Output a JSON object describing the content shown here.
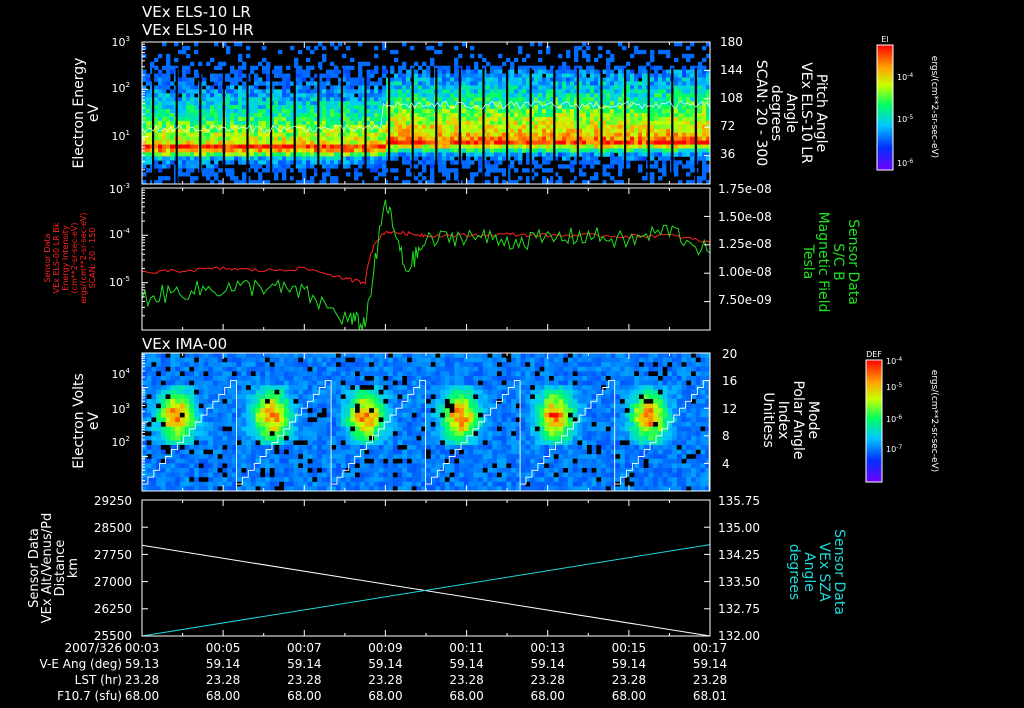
{
  "panel1": {
    "titles": [
      "VEx ELS-10 LR",
      "VEx ELS-10 HR"
    ],
    "ylabel_left": [
      "Electron Energy",
      "eV"
    ],
    "yticks_left": [
      "10",
      "10",
      "10"
    ],
    "yticks_left_exp": [
      "3",
      "2",
      "1"
    ],
    "ylabel_right": [
      "Pitch Angle",
      "VEx ELS-10 LR",
      "Angle",
      "degrees",
      "SCAN: 20 - 300"
    ],
    "yticks_right": [
      "180",
      "144",
      "108",
      "72",
      "36"
    ],
    "colorbar_title": "El",
    "colorbar_label": "ergs/(cm**2-sr-sec-eV)",
    "colorbar_ticks": [
      "10",
      "10",
      "10"
    ],
    "colorbar_ticks_exp": [
      "-4",
      "-5",
      "-6"
    ]
  },
  "panel2": {
    "ylabel_left": [
      "Sensor Data",
      "VEx ELS-00 LR Bk",
      "Energy Intensity",
      "(cm**2-sr-sec-eV)",
      "ergs/(cm**2-sr-sec-eV)",
      "SCAN: 20 - 150"
    ],
    "yticks_left": [
      "10",
      "10",
      "10"
    ],
    "yticks_left_exp": [
      "-3",
      "-4",
      "-5"
    ],
    "ylabel_right": [
      "Sensor Data",
      "S/C B",
      "Magnetic Field",
      "Tesla"
    ],
    "yticks_right": [
      "1.75e-08",
      "1.50e-08",
      "1.25e-08",
      "1.00e-08",
      "7.50e-09"
    ]
  },
  "panel3": {
    "title": "VEx IMA-00",
    "ylabel_left": [
      "Electron Volts",
      "eV"
    ],
    "yticks_left": [
      "10",
      "10",
      "10"
    ],
    "yticks_left_exp": [
      "4",
      "3",
      "2"
    ],
    "ylabel_right": [
      "Mode",
      "Polar Angle",
      "Index",
      "Unitless"
    ],
    "yticks_right": [
      "20",
      "16",
      "12",
      "8",
      "4"
    ],
    "colorbar_title": "DEF",
    "colorbar_label": "ergs/(cm**2-sr-sec-eV)",
    "colorbar_ticks": [
      "10",
      "10",
      "10",
      "10"
    ],
    "colorbar_ticks_exp": [
      "-4",
      "-5",
      "-6",
      "-7"
    ]
  },
  "panel4": {
    "ylabel_left": [
      "Sensor Data",
      "VEx Alt/Venus/Pd",
      "Distance",
      "km"
    ],
    "yticks_left": [
      "29250",
      "28500",
      "27750",
      "27000",
      "26250",
      "25500"
    ],
    "ylabel_right": [
      "Sensor Data",
      "VEx SZA",
      "Angle",
      "degrees"
    ],
    "yticks_right": [
      "135.75",
      "135.00",
      "134.25",
      "133.50",
      "132.75",
      "132.00"
    ]
  },
  "footer": {
    "row_labels": [
      "2007/326",
      "V-E Ang (deg)",
      "LST (hr)",
      "F10.7 (sfu)"
    ],
    "times": [
      "00:03",
      "00:05",
      "00:07",
      "00:09",
      "00:11",
      "00:13",
      "00:15",
      "00:17"
    ],
    "ve_ang": [
      "59.13",
      "59.14",
      "59.14",
      "59.14",
      "59.14",
      "59.14",
      "59.14",
      "59.14"
    ],
    "lst": [
      "23.28",
      "23.28",
      "23.28",
      "23.28",
      "23.28",
      "23.28",
      "23.28",
      "23.28"
    ],
    "f107": [
      "68.00",
      "68.00",
      "68.00",
      "68.00",
      "68.00",
      "68.00",
      "68.00",
      "68.01"
    ]
  },
  "colors": {
    "axis": "#ffffff",
    "red_series": "#ff2020",
    "green_series": "#20e020",
    "cyan_series": "#20d8d8",
    "white_series": "#ffffff"
  },
  "chart_data": [
    {
      "type": "heatmap",
      "id": "els-spectrogram",
      "title": "VEx ELS-10 LR / VEx ELS-10 HR",
      "x_range": [
        "00:03",
        "00:17"
      ],
      "ylabel": "Electron Energy eV",
      "y_scale": "log",
      "ylim": [
        1,
        1000
      ],
      "y2label": "Pitch Angle VEx ELS-10 LR Angle degrees SCAN: 20 - 300",
      "y2lim": [
        0,
        180
      ],
      "colorbar": "El ergs/(cm**2-sr-sec-eV)",
      "colorbar_range": [
        1e-06,
        0.001
      ],
      "band_energy_eV": {
        "before_0908": 6,
        "after_0908": 8
      },
      "pitch_angle_trace_deg": {
        "before_0908": 70,
        "after_0908": 100
      }
    },
    {
      "type": "line",
      "id": "els-intensity-and-b",
      "x_range": [
        "00:03",
        "00:17"
      ],
      "ylabel": "Sensor Data VEx ELS-00 LR Bk Energy Intensity ergs/(cm**2-sr-sec-eV) SCAN: 20 - 150",
      "y_scale": "log",
      "ylim": [
        1e-06,
        0.001
      ],
      "y2label": "Sensor Data S/C B Magnetic Field Tesla",
      "y2lim": [
        5.5e-09,
        1.75e-08
      ],
      "x": [
        "00:03",
        "00:04",
        "00:05",
        "00:06",
        "00:07",
        "00:08",
        "00:08:30",
        "00:09",
        "00:09:30",
        "00:10",
        "00:11",
        "00:12",
        "00:13",
        "00:14",
        "00:15",
        "00:16",
        "00:17"
      ],
      "series": [
        {
          "name": "Energy Intensity",
          "axis": "left",
          "color": "red",
          "values": [
            1.6e-05,
            1.8e-05,
            2e-05,
            1.8e-05,
            2e-05,
            1.2e-05,
            1e-05,
            0.00012,
            0.00011,
            0.0001,
            0.0001,
            0.000105,
            0.0001,
            0.0001,
            9.5e-05,
            0.0001,
            7e-05
          ]
        },
        {
          "name": "Magnetic Field",
          "axis": "right",
          "color": "green",
          "values": [
            8.2e-09,
            8.8e-09,
            9e-09,
            9.2e-09,
            8.6e-09,
            6.5e-09,
            6e-09,
            1.65e-08,
            1.05e-08,
            1.3e-08,
            1.35e-08,
            1.3e-08,
            1.32e-08,
            1.35e-08,
            1.3e-08,
            1.4e-08,
            1.2e-08
          ]
        }
      ]
    },
    {
      "type": "heatmap",
      "id": "ima-spectrogram",
      "title": "VEx IMA-00",
      "x_range": [
        "00:03",
        "00:17"
      ],
      "ylabel": "Electron Volts eV",
      "y_scale": "log",
      "ylim": [
        10,
        50000
      ],
      "y2label": "Mode Polar Angle Index Unitless",
      "y2lim": [
        0,
        20
      ],
      "colorbar": "DEF ergs/(cm**2-sr-sec-eV)",
      "colorbar_range": [
        1e-08,
        0.0001
      ],
      "polar_angle_sweep": {
        "period_min": 2.33,
        "min_index": 0,
        "max_index": 15
      },
      "peak_energy_eV": 1000
    },
    {
      "type": "line",
      "id": "alt-and-sza",
      "x": [
        "00:03",
        "00:17"
      ],
      "ylabel": "Sensor Data VEx Alt/Venus/Pd Distance km",
      "ylim": [
        25500,
        29250
      ],
      "y2label": "Sensor Data VEx SZA Angle degrees",
      "y2lim": [
        132.0,
        135.75
      ],
      "series": [
        {
          "name": "VEx Alt/Venus/Pd",
          "axis": "left",
          "color": "white",
          "values": [
            28000,
            25500
          ]
        },
        {
          "name": "VEx SZA",
          "axis": "right",
          "color": "cyan",
          "values": [
            132.0,
            134.52
          ]
        }
      ]
    }
  ]
}
